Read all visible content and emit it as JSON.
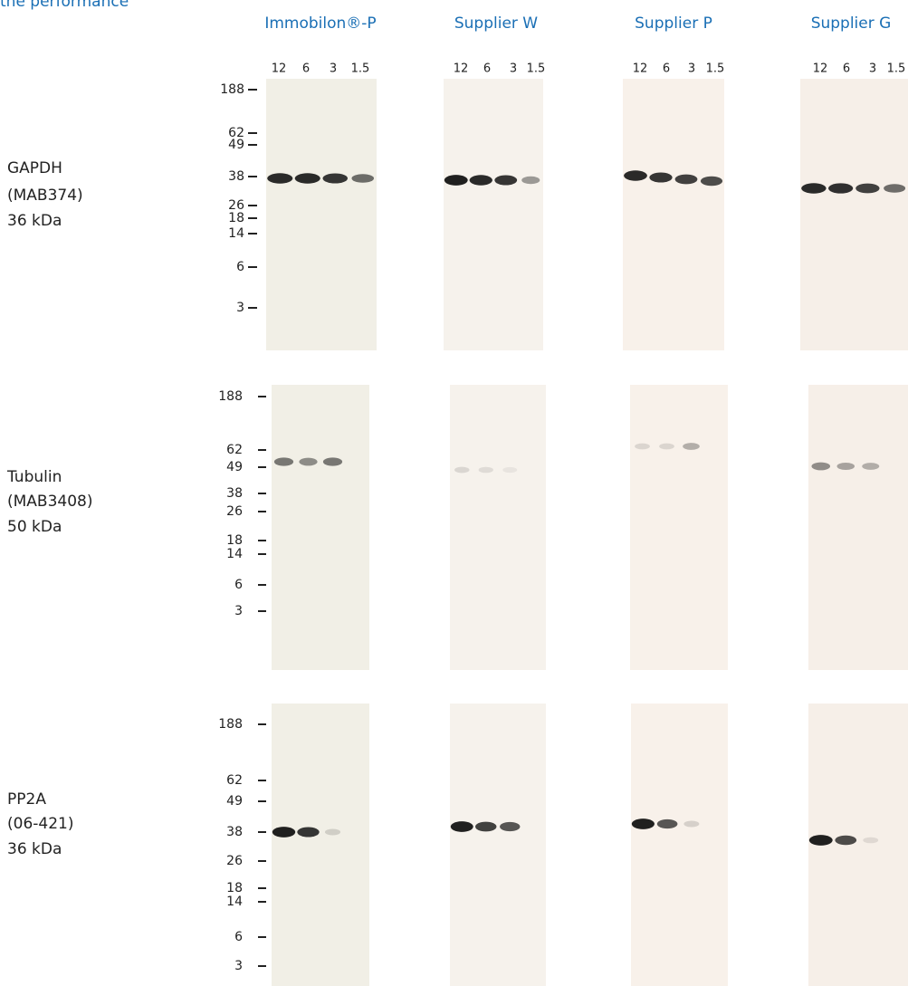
{
  "header": {
    "title_fragment": "the performance"
  },
  "columns": [
    "Immobilon®-P",
    "Supplier W",
    "Supplier P",
    "Supplier G"
  ],
  "lanes": [
    "12",
    "6",
    "3",
    "1.5"
  ],
  "rows": [
    {
      "label": [
        "GAPDH",
        "(MAB374)",
        "36 kDa"
      ],
      "markers": [
        "188",
        "62",
        "49",
        "38",
        "26",
        "18",
        "14",
        "6",
        "3"
      ]
    },
    {
      "label": [
        "Tubulin",
        "(MAB3408)",
        "50 kDa"
      ],
      "markers": [
        "188",
        "62",
        "49",
        "38",
        "26",
        "18",
        "14",
        "6",
        "3"
      ]
    },
    {
      "label": [
        "PP2A",
        "(06-421)",
        "36 kDa"
      ],
      "markers": [
        "188",
        "62",
        "49",
        "38",
        "26",
        "18",
        "14",
        "6",
        "3"
      ]
    }
  ]
}
